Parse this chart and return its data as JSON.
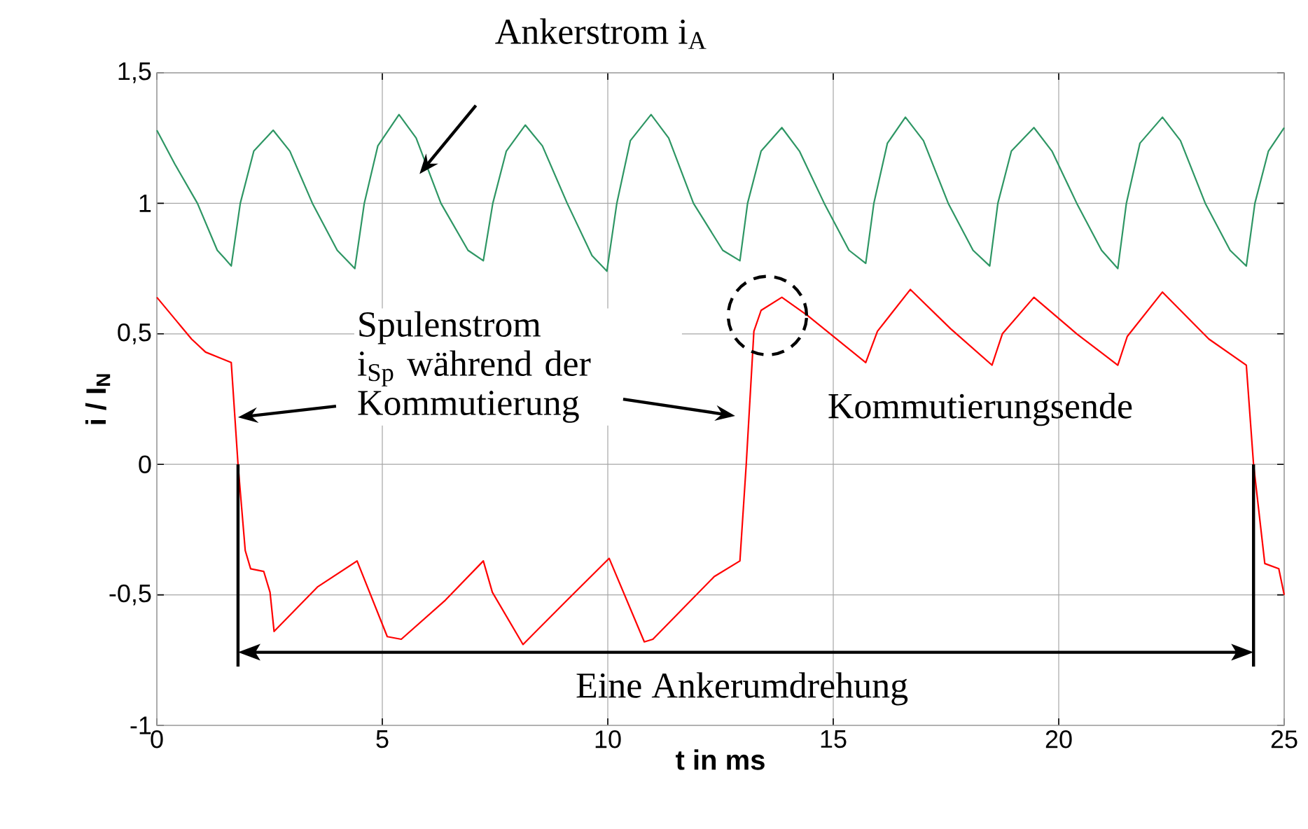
{
  "chart_data": {
    "type": "line",
    "xlabel": "t in ms",
    "ylabel": "i / I$_{N}$",
    "xlim": [
      0,
      25
    ],
    "ylim": [
      -1,
      1.5
    ],
    "xticks": [
      0,
      5,
      10,
      15,
      20,
      25
    ],
    "yticks": [
      -1,
      {
        "value": -0.5,
        "label": "-0,5"
      },
      0,
      {
        "value": 0.5,
        "label": "0,5"
      },
      1,
      {
        "value": 1.5,
        "label": "1,5"
      }
    ],
    "grid": true,
    "line_style": "solid",
    "marker": "none",
    "series": [
      {
        "color": "#2e9664",
        "x": [
          0,
          0.4,
          0.9,
          1.34,
          1.5,
          1.65,
          1.85,
          2.15,
          2.58,
          2.95,
          3.45,
          4.0,
          4.39,
          4.6,
          4.9,
          5.37,
          5.75,
          6.3,
          6.9,
          7.24,
          7.45,
          7.75,
          8.17,
          8.55,
          9.1,
          9.65,
          9.98,
          10.2,
          10.5,
          10.96,
          11.35,
          11.9,
          12.55,
          12.93,
          13.1,
          13.4,
          13.86,
          14.25,
          14.8,
          15.35,
          15.72,
          15.9,
          16.2,
          16.6,
          17.0,
          17.55,
          18.1,
          18.47,
          18.65,
          18.95,
          19.45,
          19.85,
          20.4,
          20.95,
          21.31,
          21.5,
          21.8,
          22.3,
          22.7,
          23.25,
          23.8,
          24.16,
          24.35,
          24.65,
          25.0
        ],
        "values": [
          1.28,
          1.15,
          1.0,
          0.82,
          0.79,
          0.76,
          1.0,
          1.2,
          1.28,
          1.2,
          1.0,
          0.82,
          0.75,
          1.0,
          1.22,
          1.34,
          1.25,
          1.0,
          0.82,
          0.78,
          1.0,
          1.2,
          1.3,
          1.22,
          1.0,
          0.8,
          0.74,
          1.0,
          1.24,
          1.34,
          1.25,
          1.0,
          0.82,
          0.78,
          1.0,
          1.2,
          1.29,
          1.2,
          1.0,
          0.82,
          0.77,
          1.0,
          1.23,
          1.33,
          1.24,
          1.0,
          0.82,
          0.76,
          1.0,
          1.2,
          1.29,
          1.2,
          1.0,
          0.82,
          0.75,
          1.0,
          1.23,
          1.33,
          1.24,
          1.0,
          0.82,
          0.76,
          1.0,
          1.2,
          1.29
        ]
      },
      {
        "color": "#ff0000",
        "x": [
          0,
          0.77,
          1.08,
          1.65,
          1.8,
          1.96,
          2.08,
          2.37,
          2.51,
          2.6,
          3.56,
          4.44,
          5.11,
          5.42,
          6.4,
          7.24,
          7.44,
          8.12,
          9.1,
          10.03,
          10.81,
          11.0,
          12.36,
          12.93,
          13.07,
          13.24,
          13.4,
          13.86,
          14.43,
          15.72,
          15.98,
          16.71,
          17.6,
          18.52,
          18.75,
          19.45,
          20.4,
          21.31,
          21.52,
          22.3,
          23.33,
          24.16,
          24.32,
          24.57,
          24.88,
          25.0
        ],
        "values": [
          0.64,
          0.48,
          0.43,
          0.39,
          0,
          -0.33,
          -0.4,
          -0.41,
          -0.49,
          -0.64,
          -0.47,
          -0.37,
          -0.66,
          -0.67,
          -0.52,
          -0.37,
          -0.49,
          -0.69,
          -0.52,
          -0.36,
          -0.68,
          -0.67,
          -0.43,
          -0.37,
          0,
          0.51,
          0.59,
          0.64,
          0.57,
          0.39,
          0.51,
          0.67,
          0.52,
          0.38,
          0.5,
          0.64,
          0.5,
          0.38,
          0.49,
          0.66,
          0.48,
          0.38,
          0,
          -0.38,
          -0.4,
          -0.5
        ]
      }
    ],
    "annotations": [
      "Ankerstrom i$_{A}$",
      {
        "text": "Spulenstrom i$_{Sp}$ während der Kommutierung",
        "x": 1.8,
        "y": 0.18
      },
      {
        "text": "Kommutierungsende",
        "x": 13.54,
        "y": 0.57
      },
      "Eine Ankerumdrehung"
    ],
    "ref_lines": [
      {
        "axis": "x",
        "value": 1.8,
        "color": "#000000"
      },
      {
        "axis": "x",
        "value": 24.32,
        "color": "#000000"
      }
    ]
  }
}
